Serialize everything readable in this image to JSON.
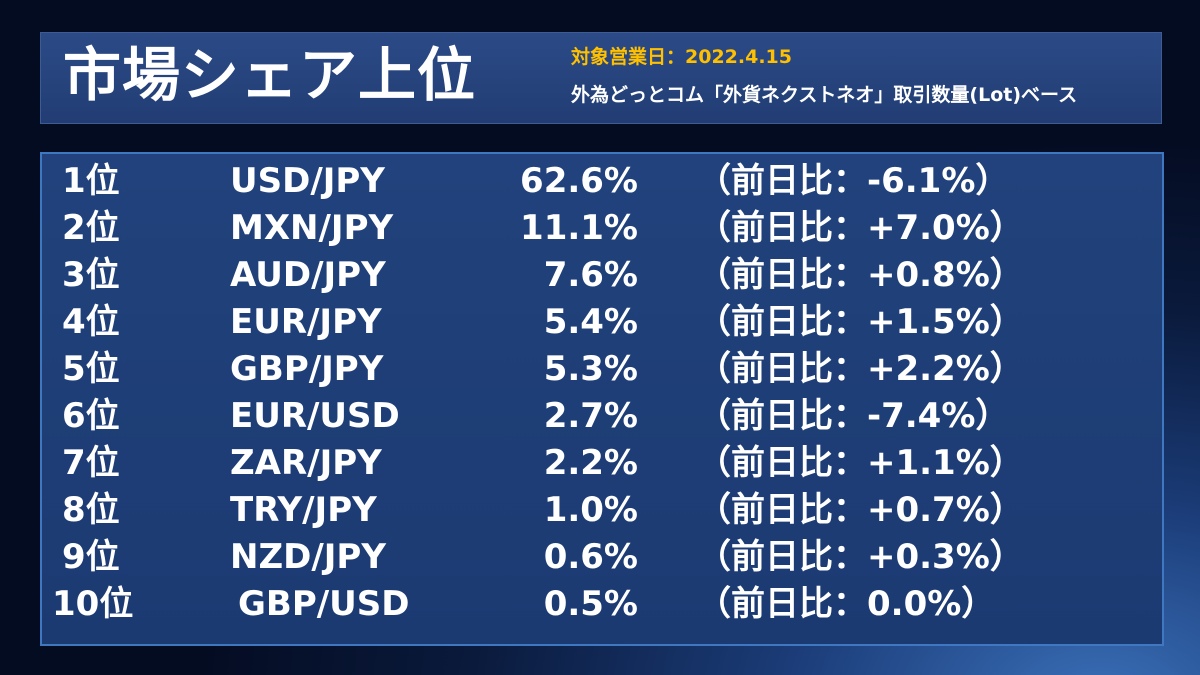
{
  "header": {
    "title": "市場シェア上位",
    "date_line": "対象営業日：2022.4.15",
    "source_line": "外為どっとコム「外貨ネクストネオ」取引数量(Lot)ベース"
  },
  "rankings": [
    {
      "rank": "1位",
      "pair": "USD/JPY",
      "share": "62.6%",
      "change": "（前日比：-6.1%）"
    },
    {
      "rank": "2位",
      "pair": "MXN/JPY",
      "share": "11.1%",
      "change": "（前日比：+7.0%）"
    },
    {
      "rank": "3位",
      "pair": "AUD/JPY",
      "share": "7.6%",
      "change": "（前日比：+0.8%）"
    },
    {
      "rank": "4位",
      "pair": "EUR/JPY",
      "share": "5.4%",
      "change": "（前日比：+1.5%）"
    },
    {
      "rank": "5位",
      "pair": "GBP/JPY",
      "share": "5.3%",
      "change": "（前日比：+2.2%）"
    },
    {
      "rank": "6位",
      "pair": "EUR/USD",
      "share": "2.7%",
      "change": "（前日比：-7.4%）"
    },
    {
      "rank": "7位",
      "pair": "ZAR/JPY",
      "share": "2.2%",
      "change": "（前日比：+1.1%）"
    },
    {
      "rank": "8位",
      "pair": "TRY/JPY",
      "share": "1.0%",
      "change": "（前日比：+0.7%）"
    },
    {
      "rank": "9位",
      "pair": "NZD/JPY",
      "share": "0.6%",
      "change": "（前日比：+0.3%）"
    },
    {
      "rank": "10位",
      "pair": "GBP/USD",
      "share": "0.5%",
      "change": "（前日比：0.0%）"
    }
  ],
  "colors": {
    "date_accent": "#ffc000",
    "panel": "#21427c",
    "panel_border": "#3f78c0",
    "text": "#ffffff"
  }
}
